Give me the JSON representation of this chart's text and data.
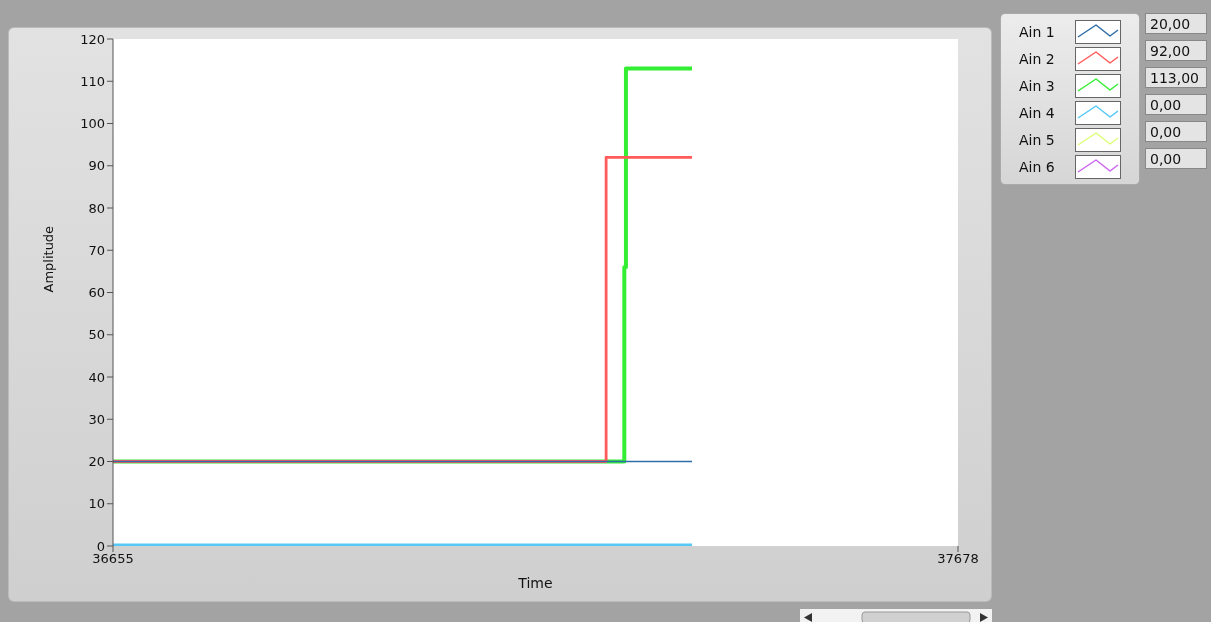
{
  "chart_data": {
    "type": "step",
    "xlabel": "Time",
    "ylabel": "Amplitude",
    "xlim": [
      36655,
      37678
    ],
    "xticks": [
      36655,
      37678
    ],
    "ylim": [
      0,
      120
    ],
    "yticks": [
      0,
      10,
      20,
      30,
      40,
      50,
      60,
      70,
      80,
      90,
      100,
      110,
      120
    ],
    "legend": "top right",
    "series": [
      {
        "name": "Ain 1",
        "color": "#2f6ea8",
        "x": [
          36655,
          37356
        ],
        "values": [
          20,
          20
        ]
      },
      {
        "name": "Ain 2",
        "color": "#ff5b5b",
        "x": [
          36655,
          37252,
          37356
        ],
        "values": [
          20,
          92,
          92
        ]
      },
      {
        "name": "Ain 3",
        "color": "#33ee33",
        "x": [
          36655,
          37274,
          37276,
          37356
        ],
        "values": [
          20,
          66,
          113,
          113
        ]
      },
      {
        "name": "Ain 4",
        "color": "#55c8f5",
        "x": [
          36655,
          37356
        ],
        "values": [
          0,
          0
        ]
      },
      {
        "name": "Ain 5",
        "color": "#ddff77",
        "values": [
          null
        ]
      },
      {
        "name": "Ain 6",
        "color": "#cc66ee",
        "values": [
          null
        ]
      }
    ],
    "annotations": [
      "20,00",
      "92,00",
      "113,00",
      "0,00",
      "0,00",
      "0,00"
    ]
  }
}
